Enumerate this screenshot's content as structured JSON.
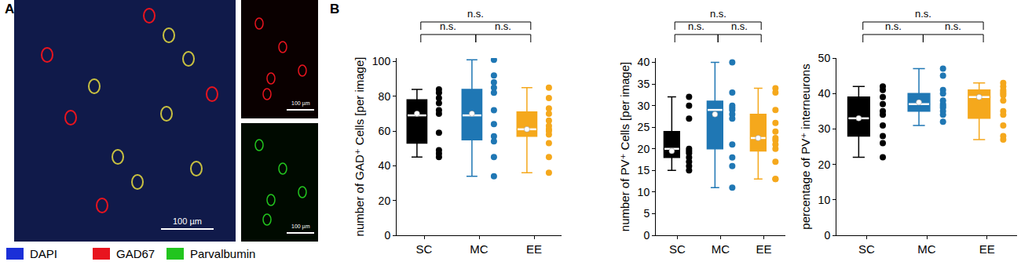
{
  "panel_labels": [
    "A",
    "B"
  ],
  "image_panel": {
    "scale_bars": [
      "100 µm",
      "100 µm",
      "100 µm"
    ],
    "channels": [
      {
        "name": "DAPI",
        "color": "#1a2fd8"
      },
      {
        "name": "GAD67",
        "color": "#e8141e"
      },
      {
        "name": "Parvalbumin",
        "color": "#22c51e"
      }
    ]
  },
  "chart_data": [
    {
      "type": "box",
      "categories": [
        "SC",
        "MC",
        "EE"
      ],
      "y_label": "number of GAD⁺ Cells [per image]",
      "ylim": [
        0,
        102
      ],
      "yticks": [
        0,
        20,
        40,
        60,
        80,
        100
      ],
      "comparisons": [
        {
          "pair": [
            "SC",
            "MC"
          ],
          "label": "n.s."
        },
        {
          "pair": [
            "MC",
            "EE"
          ],
          "label": "n.s."
        },
        {
          "pair": [
            "SC",
            "EE"
          ],
          "label": "n.s."
        }
      ],
      "boxes": [
        {
          "color": "#000000",
          "q1": 53,
          "median": 69,
          "q3": 78,
          "whisker_low": 45,
          "whisker_high": 84,
          "mean": 70,
          "points": [
            84,
            82,
            79,
            76,
            72,
            70,
            59,
            49,
            47,
            45
          ]
        },
        {
          "color": "#1f77b4",
          "q1": 55,
          "median": 69,
          "q3": 84,
          "whisker_low": 34,
          "whisker_high": 101,
          "mean": 70,
          "points": [
            101,
            92,
            88,
            85,
            82,
            72,
            64,
            57,
            54,
            45,
            34
          ]
        },
        {
          "color": "#f5a81c",
          "q1": 57,
          "median": 61,
          "q3": 71,
          "whisker_low": 36,
          "whisker_high": 85,
          "mean": 61,
          "points": [
            85,
            79,
            73,
            70,
            66,
            63,
            61,
            60,
            58,
            53,
            45,
            36
          ]
        }
      ]
    },
    {
      "type": "box",
      "categories": [
        "SC",
        "MC",
        "EE"
      ],
      "y_label": "number of PV⁺ Cells [per image]",
      "ylim": [
        0,
        41
      ],
      "yticks": [
        0,
        5,
        10,
        15,
        20,
        25,
        30,
        35,
        40
      ],
      "comparisons": [
        {
          "pair": [
            "SC",
            "MC"
          ],
          "label": "n.s."
        },
        {
          "pair": [
            "MC",
            "EE"
          ],
          "label": "n.s."
        },
        {
          "pair": [
            "SC",
            "EE"
          ],
          "label": "n.s."
        }
      ],
      "boxes": [
        {
          "color": "#000000",
          "q1": 18,
          "median": 20,
          "q3": 24,
          "whisker_low": 15,
          "whisker_high": 32,
          "mean": 19.5,
          "points": [
            32,
            30,
            27,
            20,
            19.5,
            19,
            18,
            17,
            16,
            15
          ]
        },
        {
          "color": "#1f77b4",
          "q1": 20,
          "median": 29,
          "q3": 31,
          "whisker_low": 11,
          "whisker_high": 40,
          "mean": 28,
          "points": [
            40,
            33,
            30,
            29.5,
            29,
            28,
            27,
            21,
            18,
            16,
            11
          ]
        },
        {
          "color": "#f5a81c",
          "q1": 19.5,
          "median": 22.5,
          "q3": 28,
          "whisker_low": 13,
          "whisker_high": 34,
          "mean": 22.5,
          "points": [
            34,
            33,
            29,
            26,
            24,
            22.5,
            22,
            21,
            20,
            17,
            13,
            13
          ]
        }
      ]
    },
    {
      "type": "box",
      "categories": [
        "SC",
        "MC",
        "EE"
      ],
      "y_label": "percentage of PV⁺ interneurons",
      "ylim": [
        0,
        50
      ],
      "yticks": [
        0,
        10,
        20,
        30,
        40,
        50
      ],
      "comparisons": [
        {
          "pair": [
            "SC",
            "MC"
          ],
          "label": "n.s."
        },
        {
          "pair": [
            "MC",
            "EE"
          ],
          "label": "n.s."
        },
        {
          "pair": [
            "SC",
            "EE"
          ],
          "label": "n.s."
        }
      ],
      "boxes": [
        {
          "color": "#000000",
          "q1": 28,
          "median": 33,
          "q3": 39,
          "whisker_low": 22,
          "whisker_high": 42,
          "mean": 33,
          "points": [
            42,
            41,
            39,
            37,
            35,
            34,
            31,
            28,
            26,
            22
          ]
        },
        {
          "color": "#1f77b4",
          "q1": 35,
          "median": 37,
          "q3": 40,
          "whisker_low": 31,
          "whisker_high": 47,
          "mean": 37.5,
          "points": [
            47,
            45,
            41,
            40,
            38,
            37,
            36.5,
            36,
            35,
            34,
            32
          ]
        },
        {
          "color": "#f5a81c",
          "q1": 33,
          "median": 39,
          "q3": 41,
          "whisker_low": 27,
          "whisker_high": 43,
          "mean": 39,
          "points": [
            43,
            42,
            41,
            40.5,
            40,
            39.5,
            38,
            35,
            34,
            31,
            28,
            27
          ]
        }
      ]
    }
  ]
}
